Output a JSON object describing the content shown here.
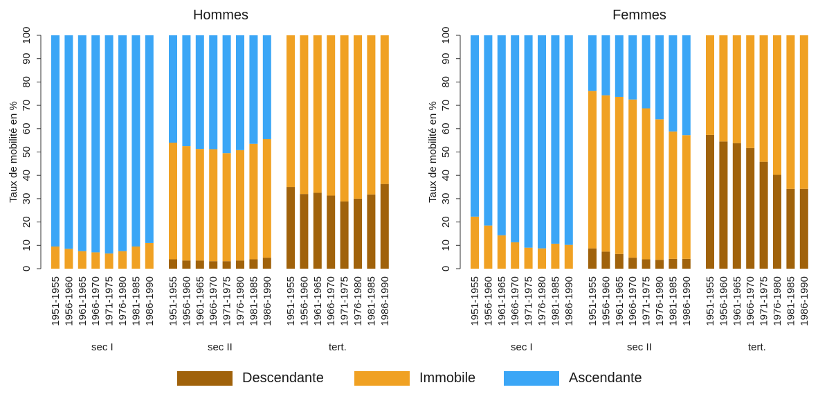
{
  "chart_data": {
    "type": "bar",
    "stacked": true,
    "colors": {
      "Descendante": "#a0620b",
      "Immobile": "#f0a123",
      "Ascendante": "#3ba6f6"
    },
    "legend": [
      "Descendante",
      "Immobile",
      "Ascendante"
    ],
    "legend_position": "bottom",
    "ylabel": "Taux de mobilité en %",
    "ylim": [
      0,
      100
    ],
    "yticks": [
      0,
      10,
      20,
      30,
      40,
      50,
      60,
      70,
      80,
      90,
      100
    ],
    "grid": false,
    "categories": [
      "1951-1955",
      "1956-1960",
      "1961-1965",
      "1966-1970",
      "1971-1975",
      "1976-1980",
      "1981-1985",
      "1986-1990"
    ],
    "panels": [
      {
        "title": "Hommes",
        "groups": [
          {
            "label": "sec I",
            "series": [
              {
                "name": "Descendante",
                "values": [
                  0,
                  0,
                  0,
                  0,
                  0,
                  0,
                  0,
                  0
                ]
              },
              {
                "name": "Immobile",
                "values": [
                  9.5,
                  8.5,
                  7.5,
                  7,
                  6.5,
                  7.5,
                  9.5,
                  11
                ]
              },
              {
                "name": "Ascendante",
                "values": [
                  90.5,
                  91.5,
                  92.5,
                  93,
                  93.5,
                  92.5,
                  90.5,
                  89
                ]
              }
            ]
          },
          {
            "label": "sec II",
            "series": [
              {
                "name": "Descendante",
                "values": [
                  4,
                  3.5,
                  3.5,
                  3.2,
                  3.2,
                  3.5,
                  4,
                  4.7
                ]
              },
              {
                "name": "Immobile",
                "values": [
                  50,
                  49,
                  47.8,
                  48,
                  46.3,
                  47.3,
                  49.5,
                  50.8
                ]
              },
              {
                "name": "Ascendante",
                "values": [
                  46,
                  47.5,
                  48.7,
                  48.8,
                  50.5,
                  49.2,
                  46.5,
                  44.5
                ]
              }
            ]
          },
          {
            "label": "tert.",
            "series": [
              {
                "name": "Descendante",
                "values": [
                  35,
                  32,
                  32.5,
                  31.3,
                  28.8,
                  30,
                  31.8,
                  36.3
                ]
              },
              {
                "name": "Immobile",
                "values": [
                  65,
                  68,
                  67.5,
                  68.7,
                  71.2,
                  70,
                  68.2,
                  63.7
                ]
              },
              {
                "name": "Ascendante",
                "values": [
                  0,
                  0,
                  0,
                  0,
                  0,
                  0,
                  0,
                  0
                ]
              }
            ]
          }
        ]
      },
      {
        "title": "Femmes",
        "groups": [
          {
            "label": "sec I",
            "series": [
              {
                "name": "Descendante",
                "values": [
                  0,
                  0,
                  0,
                  0,
                  0,
                  0,
                  0,
                  0
                ]
              },
              {
                "name": "Immobile",
                "values": [
                  22.3,
                  18.5,
                  14.3,
                  11.3,
                  9,
                  8.7,
                  10.7,
                  10.2
                ]
              },
              {
                "name": "Ascendante",
                "values": [
                  77.7,
                  81.5,
                  85.7,
                  88.7,
                  91,
                  91.3,
                  89.3,
                  89.8
                ]
              }
            ]
          },
          {
            "label": "sec II",
            "series": [
              {
                "name": "Descendante",
                "values": [
                  8.7,
                  7.3,
                  6.3,
                  4.7,
                  4,
                  3.8,
                  4.2,
                  4.2
                ]
              },
              {
                "name": "Immobile",
                "values": [
                  67.5,
                  67,
                  67.3,
                  67.8,
                  64.7,
                  60.2,
                  54.6,
                  53
                ]
              },
              {
                "name": "Ascendante",
                "values": [
                  23.8,
                  25.7,
                  26.4,
                  27.5,
                  31.3,
                  36,
                  41.2,
                  42.8
                ]
              }
            ]
          },
          {
            "label": "tert.",
            "series": [
              {
                "name": "Descendante",
                "values": [
                  57.3,
                  54.5,
                  53.8,
                  51.7,
                  45.8,
                  40.2,
                  34.2,
                  34.2
                ]
              },
              {
                "name": "Immobile",
                "values": [
                  42.7,
                  45.5,
                  46.2,
                  48.3,
                  54.2,
                  59.8,
                  65.8,
                  65.8
                ]
              },
              {
                "name": "Ascendante",
                "values": [
                  0,
                  0,
                  0,
                  0,
                  0,
                  0,
                  0,
                  0
                ]
              }
            ]
          }
        ]
      }
    ]
  }
}
